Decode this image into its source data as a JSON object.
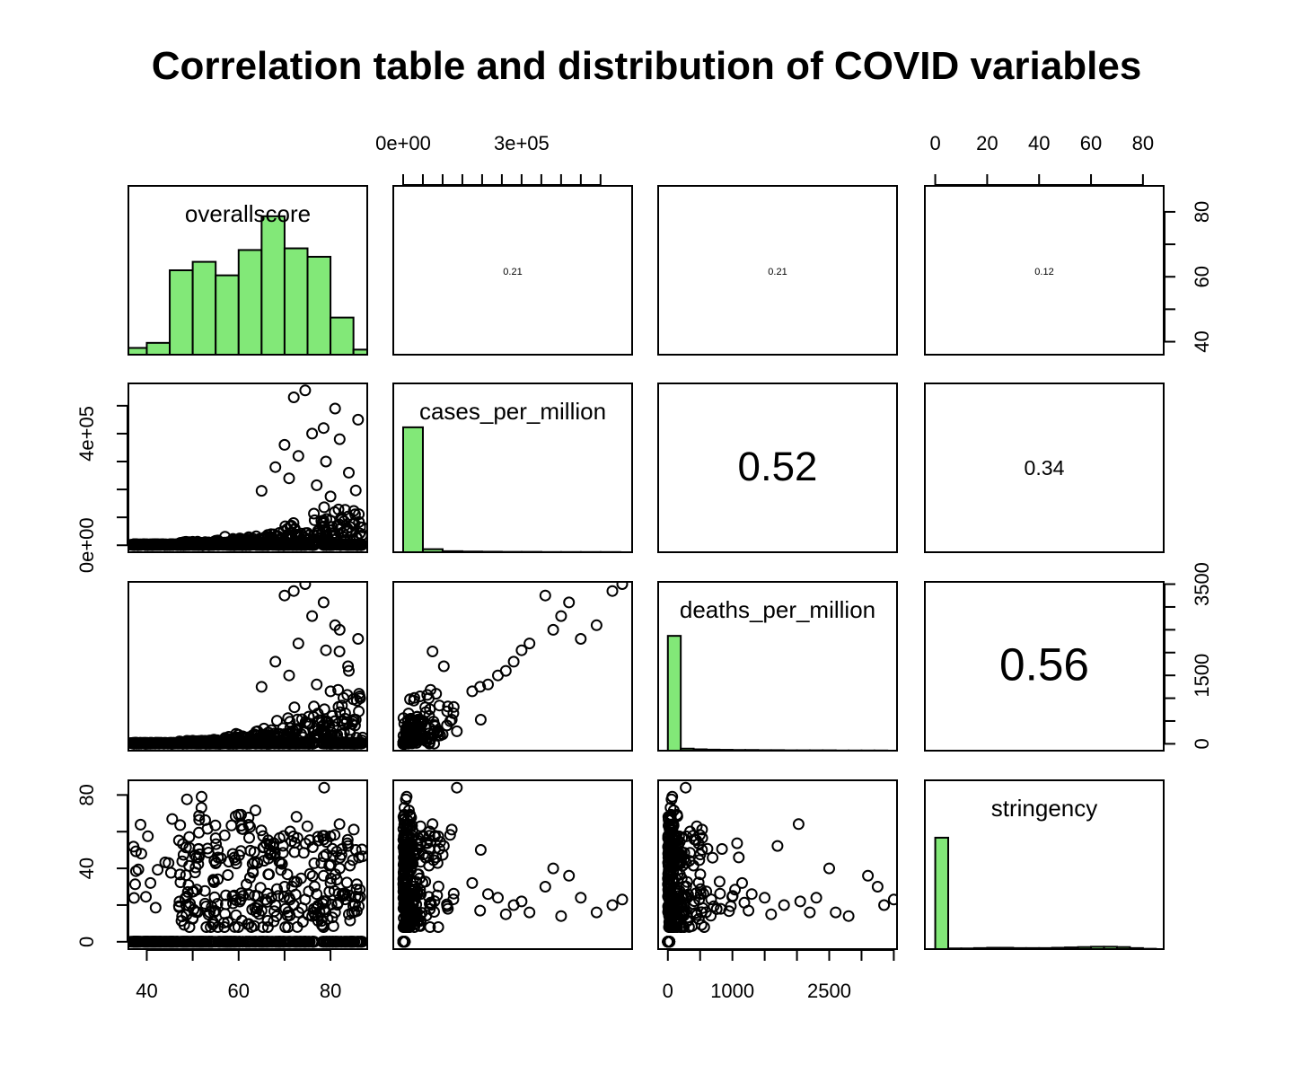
{
  "chart_data": {
    "type": "scatter",
    "title": "Correlation table and distribution of COVID variables",
    "variables": [
      "overallscore",
      "cases_per_million",
      "deaths_per_million",
      "stringency"
    ],
    "ranges": {
      "overallscore": [
        36,
        88
      ],
      "cases_per_million": [
        -25000,
        580000
      ],
      "deaths_per_million": [
        -150,
        3550
      ],
      "stringency": [
        -4,
        88
      ]
    },
    "correlations": [
      {
        "row": 0,
        "col": 1,
        "value": "0.21"
      },
      {
        "row": 0,
        "col": 2,
        "value": "0.21"
      },
      {
        "row": 0,
        "col": 3,
        "value": "0.12"
      },
      {
        "row": 1,
        "col": 2,
        "value": "0.52"
      },
      {
        "row": 1,
        "col": 3,
        "value": "0.34"
      },
      {
        "row": 2,
        "col": 3,
        "value": "0.56"
      }
    ],
    "histograms": {
      "overallscore": {
        "breaks": [
          35,
          40,
          45,
          50,
          55,
          60,
          65,
          70,
          75,
          80,
          85,
          90
        ],
        "relative_heights": [
          0.04,
          0.07,
          0.5,
          0.55,
          0.47,
          0.62,
          0.82,
          0.63,
          0.58,
          0.22,
          0.03
        ]
      },
      "cases_per_million": {
        "breaks": [
          0,
          50000,
          100000,
          150000,
          200000,
          250000,
          300000,
          350000,
          400000,
          450000,
          500000,
          550000
        ],
        "relative_heights": [
          0.74,
          0.018,
          0.006,
          0.004,
          0.003,
          0.002,
          0.002,
          0.001,
          0.001,
          0.001,
          0.001
        ]
      },
      "deaths_per_million": {
        "breaks": [
          0,
          200,
          400,
          600,
          800,
          1000,
          1200,
          1400,
          1600,
          1800,
          2000,
          2200,
          2400,
          2600,
          2800,
          3000,
          3200,
          3400
        ],
        "relative_heights": [
          0.68,
          0.012,
          0.008,
          0.006,
          0.005,
          0.004,
          0.004,
          0.003,
          0.003,
          0.002,
          0.002,
          0.002,
          0.002,
          0.001,
          0.001,
          0.001,
          0.001
        ]
      },
      "stringency": {
        "breaks": [
          0,
          5,
          10,
          15,
          20,
          25,
          30,
          35,
          40,
          45,
          50,
          55,
          60,
          65,
          70,
          75,
          80,
          85
        ],
        "relative_heights": [
          0.66,
          0.004,
          0.004,
          0.006,
          0.008,
          0.008,
          0.006,
          0.006,
          0.006,
          0.008,
          0.01,
          0.012,
          0.014,
          0.014,
          0.012,
          0.006,
          0.002
        ]
      }
    },
    "axes": {
      "top": [
        {
          "col": 1,
          "ticks": [
            0,
            50000,
            100000,
            150000,
            200000,
            250000,
            300000,
            350000,
            400000,
            450000,
            500000
          ],
          "labels": [
            {
              "value": 0,
              "text": "0e+00"
            },
            {
              "value": 300000,
              "text": "3e+05"
            }
          ]
        },
        {
          "col": 3,
          "ticks": [
            0,
            20,
            40,
            60,
            80
          ],
          "labels": [
            {
              "value": 0,
              "text": "0"
            },
            {
              "value": 20,
              "text": "20"
            },
            {
              "value": 40,
              "text": "40"
            },
            {
              "value": 60,
              "text": "60"
            },
            {
              "value": 80,
              "text": "80"
            }
          ]
        }
      ],
      "bottom": [
        {
          "col": 0,
          "ticks": [
            40,
            50,
            60,
            70,
            80
          ],
          "labels": [
            {
              "value": 40,
              "text": "40"
            },
            {
              "value": 60,
              "text": "60"
            },
            {
              "value": 80,
              "text": "80"
            }
          ]
        },
        {
          "col": 2,
          "ticks": [
            0,
            500,
            1000,
            1500,
            2000,
            2500,
            3000,
            3500
          ],
          "labels": [
            {
              "value": 0,
              "text": "0"
            },
            {
              "value": 1000,
              "text": "1000"
            },
            {
              "value": 2500,
              "text": "2500"
            }
          ]
        }
      ],
      "left": [
        {
          "row": 1,
          "ticks": [
            0,
            100000,
            200000,
            300000,
            400000,
            500000
          ],
          "labels": [
            {
              "value": 0,
              "text": "0e+00"
            },
            {
              "value": 400000,
              "text": "4e+05"
            }
          ]
        },
        {
          "row": 3,
          "ticks": [
            0,
            20,
            40,
            60,
            80
          ],
          "labels": [
            {
              "value": 0,
              "text": "0"
            },
            {
              "value": 40,
              "text": "40"
            },
            {
              "value": 80,
              "text": "80"
            }
          ]
        }
      ],
      "right": [
        {
          "row": 0,
          "ticks": [
            40,
            50,
            60,
            70,
            80
          ],
          "labels": [
            {
              "value": 40,
              "text": "40"
            },
            {
              "value": 60,
              "text": "60"
            },
            {
              "value": 80,
              "text": "80"
            }
          ]
        },
        {
          "row": 2,
          "ticks": [
            0,
            500,
            1000,
            1500,
            2000,
            2500,
            3000,
            3500
          ],
          "labels": [
            {
              "value": 0,
              "text": "0"
            },
            {
              "value": 1500,
              "text": "1500"
            },
            {
              "value": 3500,
              "text": "3500"
            }
          ]
        }
      ]
    },
    "scatter_outliers": [
      {
        "overallscore": 72,
        "cases_per_million": 530000,
        "deaths_per_million": 3350,
        "stringency": 20
      },
      {
        "overallscore": 74.5,
        "cases_per_million": 555000,
        "deaths_per_million": 3500,
        "stringency": 23
      },
      {
        "overallscore": 81,
        "cases_per_million": 490000,
        "deaths_per_million": 2600,
        "stringency": 16
      },
      {
        "overallscore": 86,
        "cases_per_million": 450000,
        "deaths_per_million": 2300,
        "stringency": 24
      },
      {
        "overallscore": 70,
        "cases_per_million": 360000,
        "deaths_per_million": 3250,
        "stringency": 30
      },
      {
        "overallscore": 78.5,
        "cases_per_million": 420000,
        "deaths_per_million": 3100,
        "stringency": 36
      },
      {
        "overallscore": 76,
        "cases_per_million": 400000,
        "deaths_per_million": 2800,
        "stringency": 14
      },
      {
        "overallscore": 82,
        "cases_per_million": 380000,
        "deaths_per_million": 2500,
        "stringency": 40
      },
      {
        "overallscore": 73,
        "cases_per_million": 320000,
        "deaths_per_million": 2200,
        "stringency": 16
      },
      {
        "overallscore": 79,
        "cases_per_million": 300000,
        "deaths_per_million": 2050,
        "stringency": 22
      },
      {
        "overallscore": 68,
        "cases_per_million": 280000,
        "deaths_per_million": 1800,
        "stringency": 20
      },
      {
        "overallscore": 84,
        "cases_per_million": 260000,
        "deaths_per_million": 1600,
        "stringency": 15
      },
      {
        "overallscore": 71,
        "cases_per_million": 240000,
        "deaths_per_million": 1500,
        "stringency": 24
      },
      {
        "overallscore": 77,
        "cases_per_million": 215000,
        "deaths_per_million": 1300,
        "stringency": 26
      },
      {
        "overallscore": 65,
        "cases_per_million": 195000,
        "deaths_per_million": 1250,
        "stringency": 17
      },
      {
        "overallscore": 80,
        "cases_per_million": 175000,
        "deaths_per_million": 1150,
        "stringency": 32
      }
    ]
  }
}
